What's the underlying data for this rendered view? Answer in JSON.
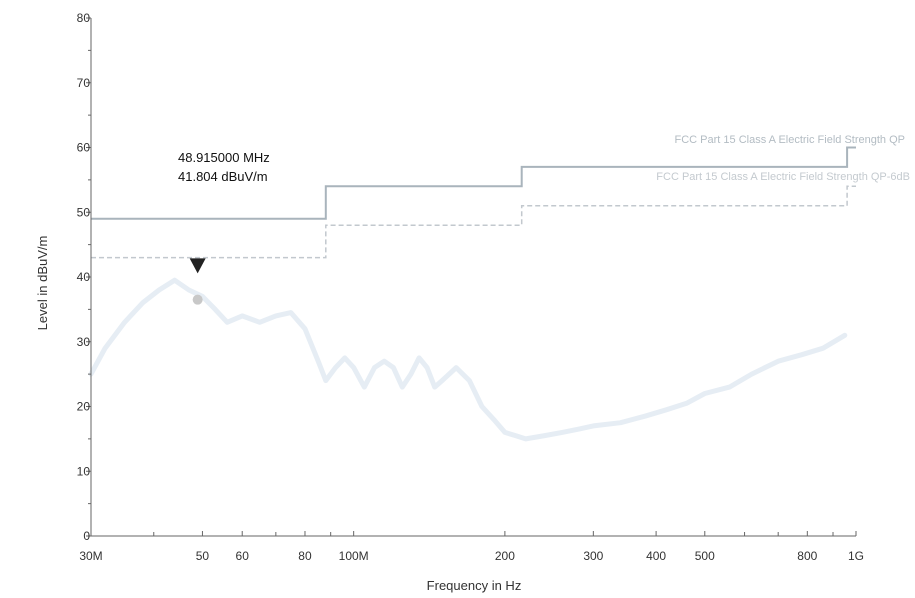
{
  "chart_data": {
    "type": "line",
    "xlabel": "Frequency in Hz",
    "ylabel": "Level in dBuV/m",
    "x_scale": "log",
    "xlim": [
      30,
      1000
    ],
    "ylim": [
      0,
      80
    ],
    "y_ticks": [
      0,
      10,
      20,
      30,
      40,
      50,
      60,
      70,
      80
    ],
    "x_ticks": [
      {
        "value": 30,
        "label": "30M"
      },
      {
        "value": 50,
        "label": "50"
      },
      {
        "value": 60,
        "label": "60"
      },
      {
        "value": 80,
        "label": "80"
      },
      {
        "value": 100,
        "label": "100M"
      },
      {
        "value": 200,
        "label": "200"
      },
      {
        "value": 300,
        "label": "300"
      },
      {
        "value": 400,
        "label": "400"
      },
      {
        "value": 500,
        "label": "500"
      },
      {
        "value": 800,
        "label": "800"
      },
      {
        "value": 1000,
        "label": "1G"
      }
    ],
    "x_minor_ticks": [
      40,
      70,
      90,
      600,
      700,
      900
    ],
    "grid": false,
    "limit_lines": [
      {
        "name": "FCC Part 15 Class A Electric Field Strength QP",
        "style": "solid",
        "color": "#a9b4bc",
        "x": [
          30,
          88,
          88,
          216,
          216,
          960,
          960,
          1000
        ],
        "y": [
          49,
          49,
          54,
          54,
          57,
          57,
          60,
          60
        ]
      },
      {
        "name": "FCC Part 15 Class A Electric Field Strength QP-6dB",
        "style": "dashed",
        "color": "#c2c8ce",
        "x": [
          30,
          88,
          88,
          216,
          216,
          960,
          960,
          1000
        ],
        "y": [
          43,
          43,
          48,
          48,
          51,
          51,
          54,
          54
        ]
      }
    ],
    "series": [
      {
        "color": "#e6edf4",
        "x": [
          30,
          32,
          35,
          38,
          41,
          44,
          47,
          50,
          53,
          56,
          60,
          65,
          70,
          75,
          80,
          85,
          88,
          92,
          96,
          100,
          105,
          110,
          115,
          120,
          125,
          130,
          135,
          140,
          145,
          150,
          160,
          170,
          180,
          190,
          200,
          210,
          220,
          240,
          260,
          280,
          300,
          340,
          380,
          420,
          460,
          500,
          560,
          620,
          700,
          780,
          860,
          950
        ],
        "y": [
          25,
          29,
          33,
          36,
          38,
          39.5,
          38,
          37,
          35,
          33,
          34,
          33,
          34,
          34.5,
          32,
          27,
          24,
          26,
          27.5,
          26,
          23,
          26,
          27,
          26,
          23,
          25,
          27.5,
          26,
          23,
          24,
          26,
          24,
          20,
          18,
          16,
          15.5,
          15,
          15.5,
          16,
          16.5,
          17,
          17.5,
          18.5,
          19.5,
          20.5,
          22,
          23,
          25,
          27,
          28,
          29,
          31
        ]
      }
    ],
    "marker": {
      "freq_label": "48.915000 MHz",
      "level_label": "41.804 dBuV/m",
      "x": 48.915,
      "y": 41.804,
      "qp_point_y": 36.5
    }
  },
  "colors": {
    "axis": "#666666",
    "marker_triangle": "#222222",
    "qp_point": "#c8c8c8"
  }
}
